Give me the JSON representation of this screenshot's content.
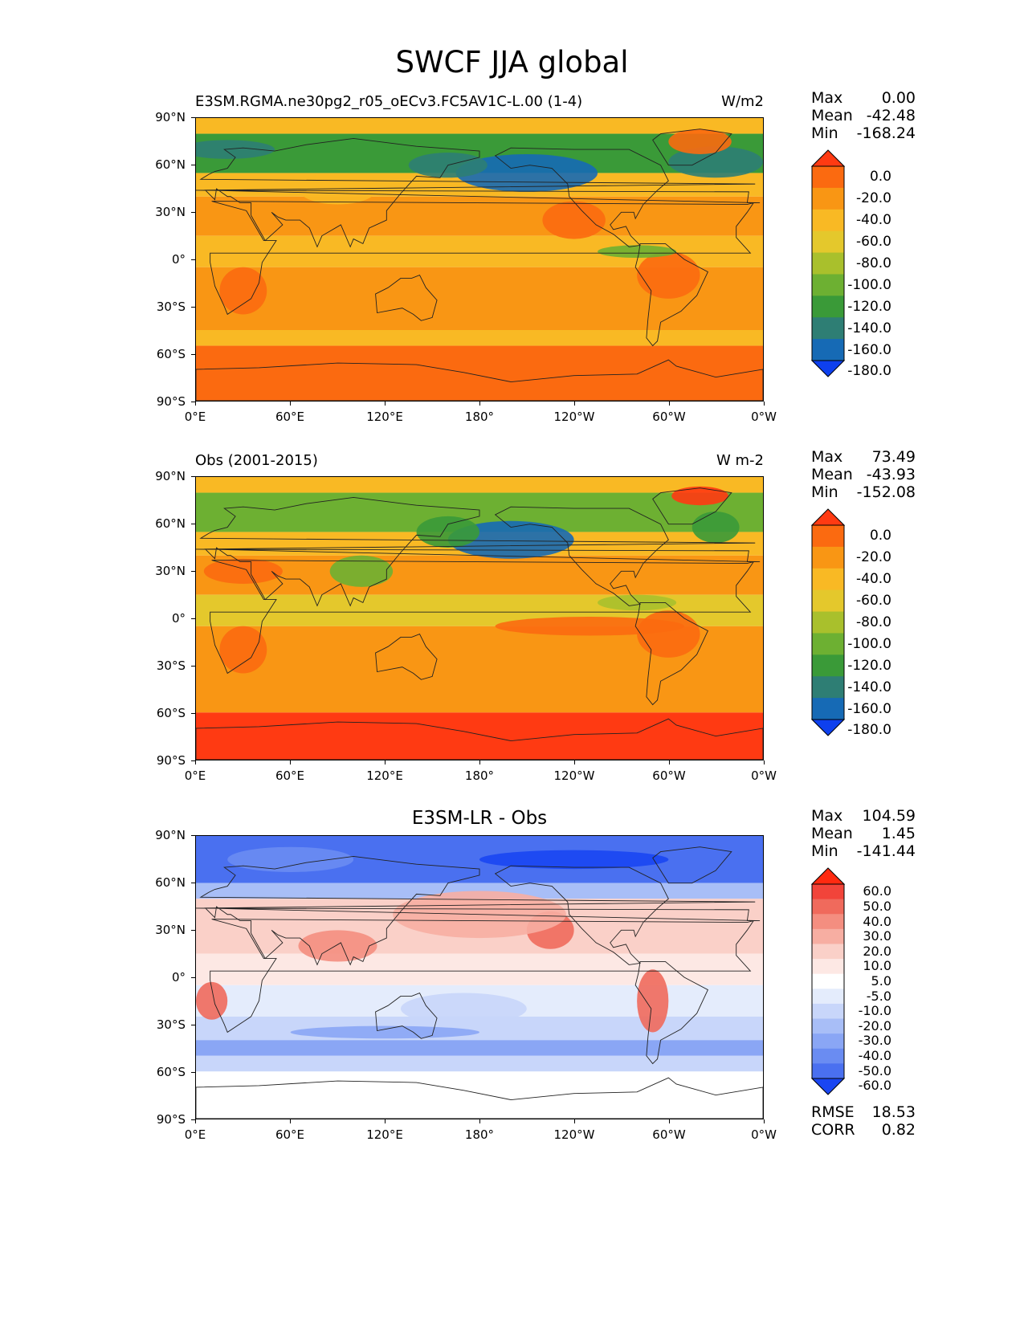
{
  "figure": {
    "title": "SWCF JJA global"
  },
  "axes": {
    "yticks": [
      "90°N",
      "60°N",
      "30°N",
      "0°",
      "30°S",
      "60°S",
      "90°S"
    ],
    "xticks": [
      "0°E",
      "60°E",
      "120°E",
      "180°",
      "120°W",
      "60°W",
      "0°W"
    ]
  },
  "panels": [
    {
      "left_title": "E3SM.RGMA.ne30pg2_r05_oECv3.FC5AV1C-L.00 (1-4)",
      "center_title": "",
      "right_title": "W/m2",
      "stats": [
        {
          "label": "Max",
          "value": "0.00"
        },
        {
          "label": "Mean",
          "value": "-42.48"
        },
        {
          "label": "Min",
          "value": "-168.24"
        }
      ],
      "colorbar": {
        "labels": [
          "0.0",
          "-20.0",
          "-40.0",
          "-60.0",
          "-80.0",
          "-100.0",
          "-120.0",
          "-140.0",
          "-160.0",
          "-180.0"
        ],
        "colors": [
          "#ff3a12",
          "#fb6a10",
          "#f99614",
          "#f9b924",
          "#e4c82c",
          "#a9c02c",
          "#6db032",
          "#3a9a38",
          "#2e7e74",
          "#166ab5",
          "#0e40ee"
        ]
      }
    },
    {
      "left_title": "Obs (2001-2015)",
      "center_title": "",
      "right_title": "W m-2",
      "stats": [
        {
          "label": "Max",
          "value": "73.49"
        },
        {
          "label": "Mean",
          "value": "-43.93"
        },
        {
          "label": "Min",
          "value": "-152.08"
        }
      ],
      "colorbar": {
        "labels": [
          "0.0",
          "-20.0",
          "-40.0",
          "-60.0",
          "-80.0",
          "-100.0",
          "-120.0",
          "-140.0",
          "-160.0",
          "-180.0"
        ],
        "colors": [
          "#ff3a12",
          "#fb6a10",
          "#f99614",
          "#f9b924",
          "#e4c82c",
          "#a9c02c",
          "#6db032",
          "#3a9a38",
          "#2e7e74",
          "#166ab5",
          "#0e40ee"
        ]
      }
    },
    {
      "left_title": "",
      "center_title": "E3SM-LR - Obs",
      "right_title": "",
      "stats": [
        {
          "label": "Max",
          "value": "104.59"
        },
        {
          "label": "Mean",
          "value": "1.45"
        },
        {
          "label": "Min",
          "value": "-141.44"
        }
      ],
      "extra_stats": [
        {
          "label": "RMSE",
          "value": "18.53"
        },
        {
          "label": "CORR",
          "value": "0.82"
        }
      ],
      "colorbar": {
        "labels": [
          "60.0",
          "50.0",
          "40.0",
          "30.0",
          "20.0",
          "10.0",
          "5.0",
          "-5.0",
          "-10.0",
          "-20.0",
          "-30.0",
          "-40.0",
          "-50.0",
          "-60.0"
        ],
        "colors": [
          "#ff2a10",
          "#f2443a",
          "#f06a5c",
          "#f48e80",
          "#f7aea2",
          "#fad0c8",
          "#fde8e4",
          "#ffffff",
          "#e4ecfc",
          "#c8d6fa",
          "#a8bef7",
          "#8aa6f5",
          "#6a8cf2",
          "#4a70f0",
          "#1a46f2"
        ]
      }
    }
  ],
  "chart_data": [
    {
      "type": "heatmap",
      "title": "SWCF JJA global",
      "subtitle": "E3SM.RGMA.ne30pg2_r05_oECv3.FC5AV1C-L.00 (1-4)",
      "units": "W/m2",
      "x_ticks": [
        "0°E",
        "60°E",
        "120°E",
        "180°",
        "120°W",
        "60°W",
        "0°W"
      ],
      "y_ticks": [
        "90°N",
        "60°N",
        "30°N",
        "0°",
        "30°S",
        "60°S",
        "90°S"
      ],
      "xlim": [
        0,
        360
      ],
      "ylim": [
        -90,
        90
      ],
      "levels": [
        0,
        -20,
        -40,
        -60,
        -80,
        -100,
        -120,
        -140,
        -160,
        -180
      ],
      "stats": {
        "Max": 0.0,
        "Mean": -42.48,
        "Min": -168.24
      }
    },
    {
      "type": "heatmap",
      "subtitle": "Obs (2001-2015)",
      "units": "W m-2",
      "x_ticks": [
        "0°E",
        "60°E",
        "120°E",
        "180°",
        "120°W",
        "60°W",
        "0°W"
      ],
      "y_ticks": [
        "90°N",
        "60°N",
        "30°N",
        "0°",
        "30°S",
        "60°S",
        "90°S"
      ],
      "xlim": [
        0,
        360
      ],
      "ylim": [
        -90,
        90
      ],
      "levels": [
        0,
        -20,
        -40,
        -60,
        -80,
        -100,
        -120,
        -140,
        -160,
        -180
      ],
      "stats": {
        "Max": 73.49,
        "Mean": -43.93,
        "Min": -152.08
      }
    },
    {
      "type": "heatmap",
      "subtitle": "E3SM-LR - Obs",
      "x_ticks": [
        "0°E",
        "60°E",
        "120°E",
        "180°",
        "120°W",
        "60°W",
        "0°W"
      ],
      "y_ticks": [
        "90°N",
        "60°N",
        "30°N",
        "0°",
        "30°S",
        "60°S",
        "90°S"
      ],
      "xlim": [
        0,
        360
      ],
      "ylim": [
        -90,
        90
      ],
      "levels": [
        60,
        50,
        40,
        30,
        20,
        10,
        5,
        -5,
        -10,
        -20,
        -30,
        -40,
        -50,
        -60
      ],
      "stats": {
        "Max": 104.59,
        "Mean": 1.45,
        "Min": -141.44,
        "RMSE": 18.53,
        "CORR": 0.82
      }
    }
  ]
}
